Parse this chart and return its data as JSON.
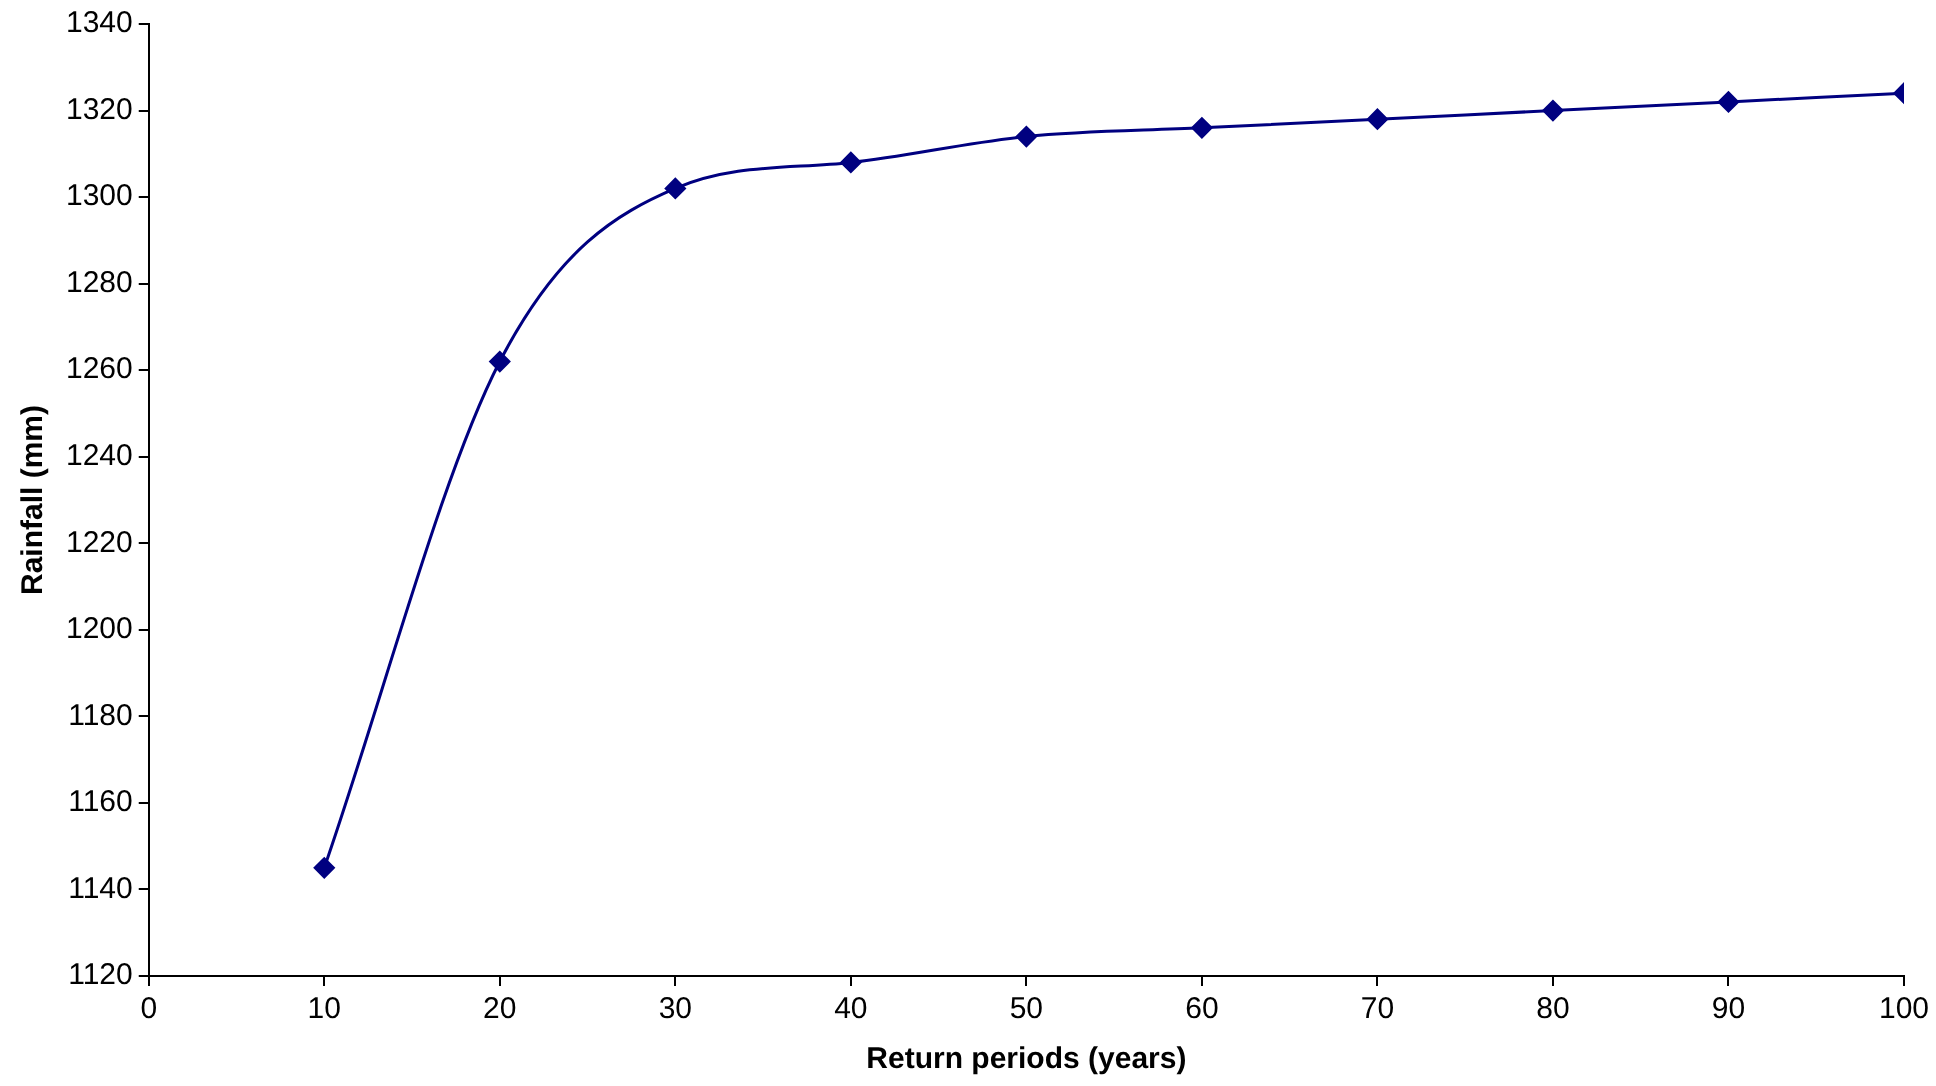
{
  "chart_data": {
    "type": "line",
    "xlabel": "Return periods (years)",
    "ylabel": "Rainfall (mm)",
    "x": [
      10,
      20,
      30,
      40,
      50,
      60,
      70,
      80,
      90,
      100
    ],
    "series": [
      {
        "color": "#000080",
        "values": [
          1145,
          1262,
          1302,
          1308,
          1314,
          1316,
          1318,
          1320,
          1322,
          1324
        ]
      }
    ],
    "xlim": [
      0,
      100
    ],
    "xticks": [
      0,
      10,
      20,
      30,
      40,
      50,
      60,
      70,
      80,
      90,
      100
    ],
    "ylim": [
      1120,
      1340
    ],
    "yticks": [
      1120,
      1140,
      1160,
      1180,
      1200,
      1220,
      1240,
      1260,
      1280,
      1300,
      1320,
      1340
    ],
    "grid": false,
    "legend": false,
    "marker": "diamond",
    "line_style": "solid"
  }
}
